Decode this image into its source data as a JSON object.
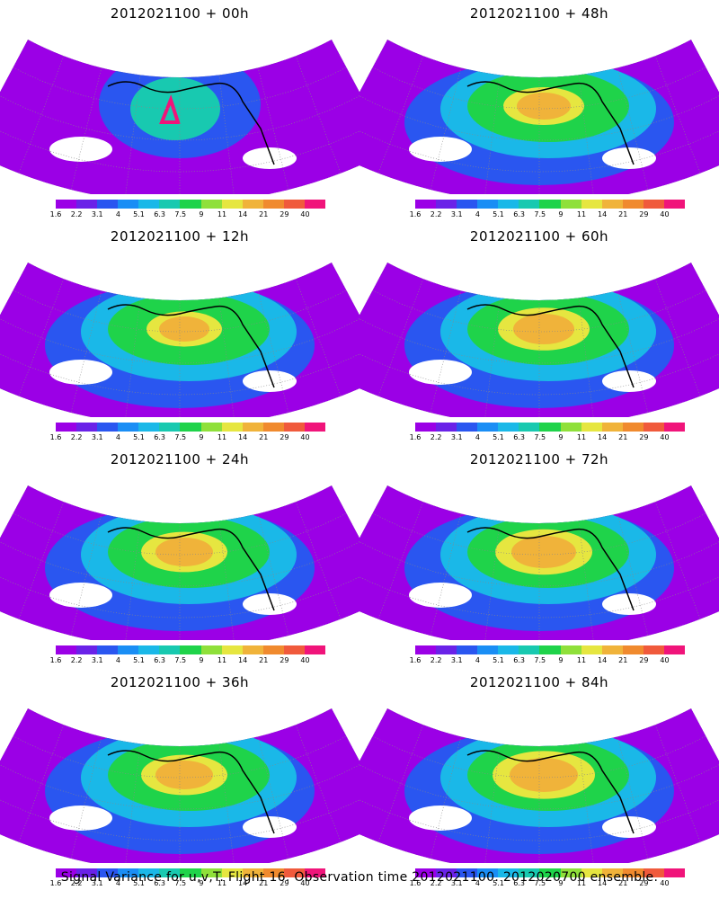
{
  "panels": [
    {
      "title": "2012021100 + 00h",
      "lead": "00h"
    },
    {
      "title": "2012021100 + 48h",
      "lead": "48h"
    },
    {
      "title": "2012021100 + 12h",
      "lead": "12h"
    },
    {
      "title": "2012021100 + 60h",
      "lead": "60h"
    },
    {
      "title": "2012021100 + 24h",
      "lead": "24h"
    },
    {
      "title": "2012021100 + 72h",
      "lead": "72h"
    },
    {
      "title": "2012021100 + 36h",
      "lead": "36h"
    },
    {
      "title": "2012021100 + 84h",
      "lead": "84h"
    }
  ],
  "colorbar": {
    "labels": [
      "1.6",
      "2.2",
      "3.1",
      "4",
      "5.1",
      "6.3",
      "7.5",
      "9",
      "11",
      "14",
      "21",
      "29",
      "40"
    ],
    "colors": [
      "#9b00e6",
      "#6a22e8",
      "#2a56f0",
      "#1a8ef5",
      "#1ab8e8",
      "#18c9b0",
      "#1fd34a",
      "#8fe03a",
      "#e6e640",
      "#f0b33a",
      "#f08a2e",
      "#f05a3c",
      "#f0147a"
    ]
  },
  "caption": "Signal Variance for u,v,T. Flight 16. Observation time 2012021100. 2012020700 ensemble."
}
